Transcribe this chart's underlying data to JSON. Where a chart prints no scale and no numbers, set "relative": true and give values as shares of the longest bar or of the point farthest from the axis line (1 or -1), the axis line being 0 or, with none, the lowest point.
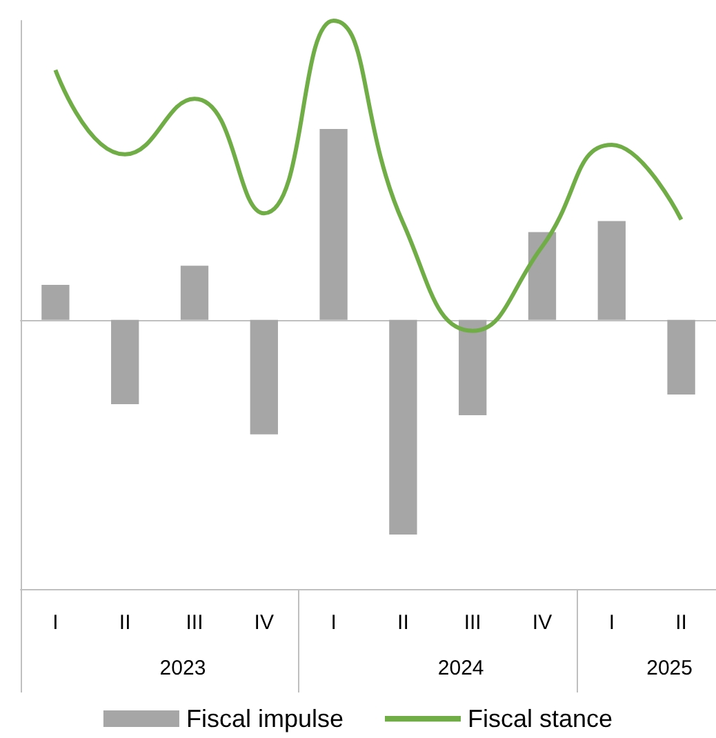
{
  "chart_data": {
    "type": "bar",
    "relative": true,
    "categories": [
      "I",
      "II",
      "III",
      "IV",
      "I",
      "II",
      "III",
      "IV",
      "I",
      "II"
    ],
    "series": [
      {
        "name": "Fiscal impulse",
        "color": "#a6a6a6",
        "values": [
          0.117,
          -0.282,
          0.181,
          -0.383,
          0.638,
          -0.718,
          -0.319,
          0.293,
          0.33,
          -0.25
        ]
      },
      {
        "name": "Fiscal stance",
        "type": "line",
        "color": "#70ad47",
        "values": [
          0.835,
          0.553,
          0.739,
          0.356,
          1.0,
          0.324,
          -0.037,
          0.245,
          0.585,
          0.335
        ]
      }
    ],
    "annotations": [
      "2023",
      "2024",
      "2025"
    ],
    "legend": "bottom",
    "marker": "none",
    "grid": false
  }
}
